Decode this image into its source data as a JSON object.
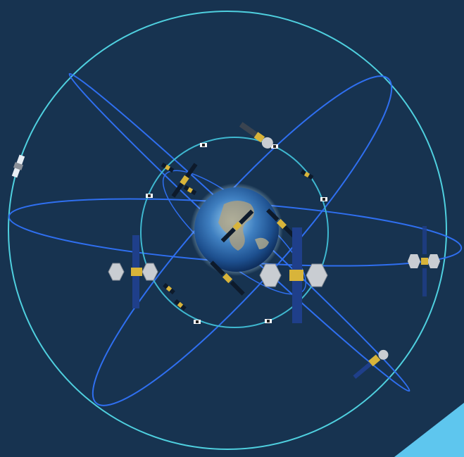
{
  "scene": {
    "subject": "satellite-constellation",
    "colors": {
      "background": "#173350",
      "outer_orbit": "#4fd0df",
      "inner_orbit": "#3fb8d0",
      "tilted_orbit": "#2f6ff0",
      "corner_accent": "#5ec6ee",
      "panel_dark": "#0d1a2b",
      "panel_blue": "#1f3f8a",
      "satellite_gold": "#d8b43a",
      "dish_grey": "#c9cdd2"
    },
    "icons": [
      "earth-globe-icon",
      "satellite-icon"
    ]
  }
}
